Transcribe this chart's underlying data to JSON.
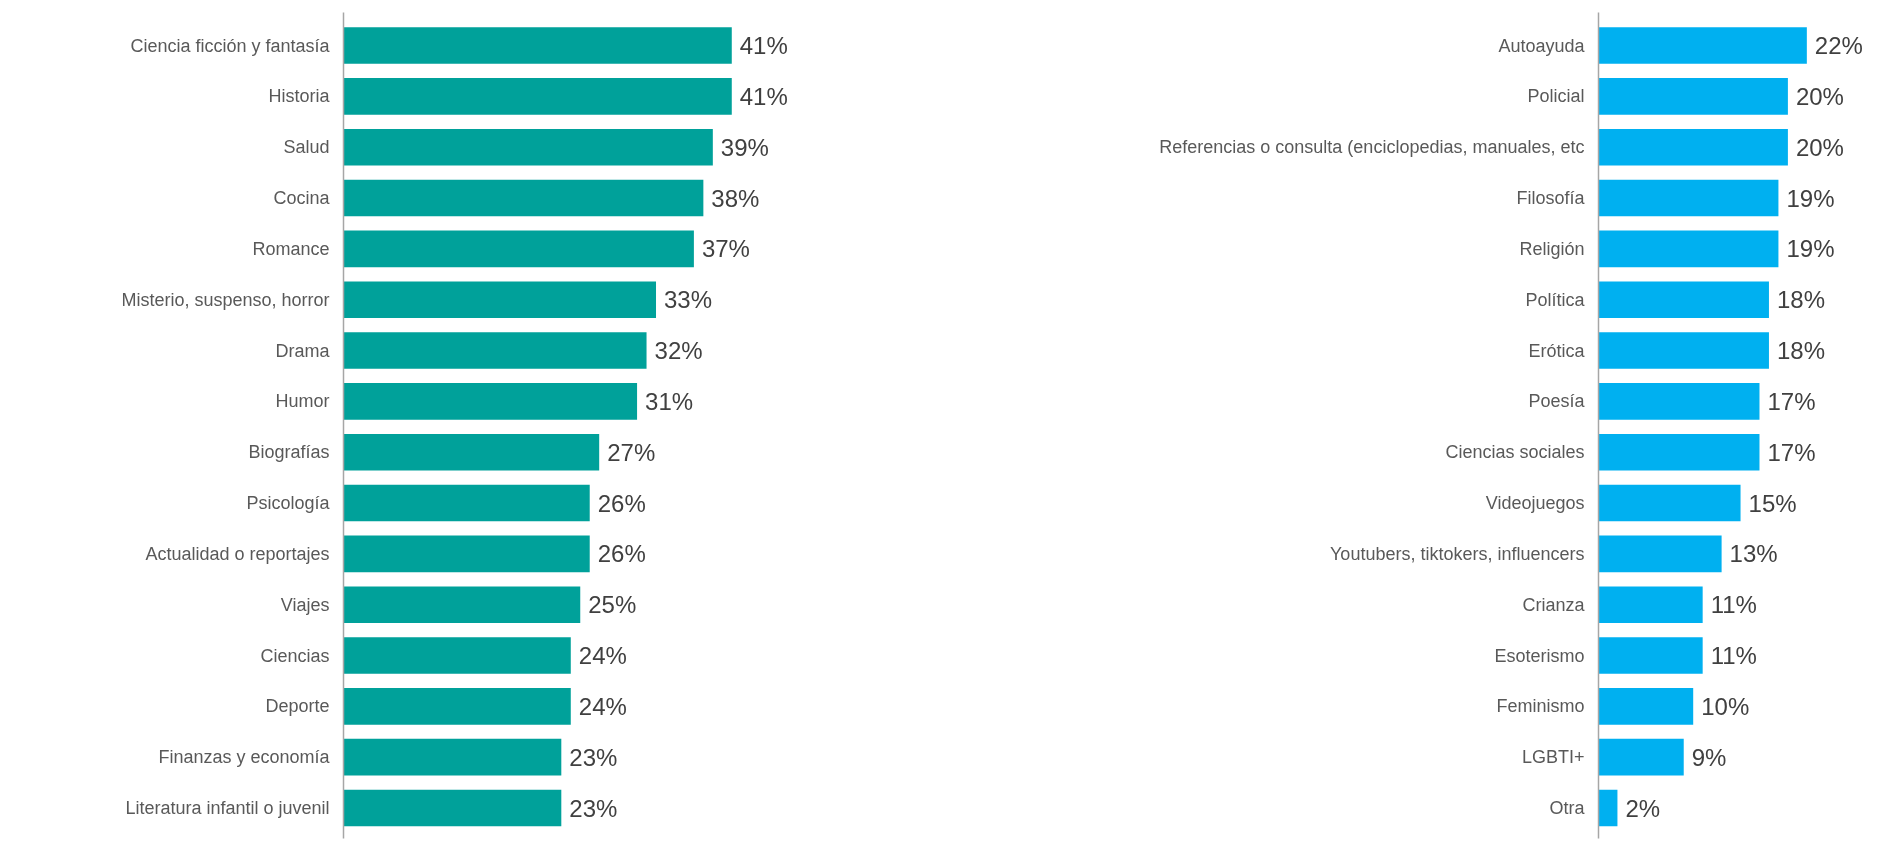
{
  "chart_data": [
    {
      "type": "bar",
      "orientation": "horizontal",
      "color": "#00a19a",
      "categories": [
        "Ciencia ficción y fantasía",
        "Historia",
        "Salud",
        "Cocina",
        "Romance",
        "Misterio, suspenso, horror",
        "Drama",
        "Humor",
        "Biografías",
        "Psicología",
        "Actualidad o reportajes",
        "Viajes",
        "Ciencias",
        "Deporte",
        "Finanzas y economía",
        "Literatura infantil o juvenil"
      ],
      "values": [
        41,
        41,
        39,
        38,
        37,
        33,
        32,
        31,
        27,
        26,
        26,
        25,
        24,
        24,
        23,
        23
      ],
      "value_labels": [
        "41%",
        "41%",
        "39%",
        "38%",
        "37%",
        "33%",
        "32%",
        "31%",
        "27%",
        "26%",
        "26%",
        "25%",
        "24%",
        "24%",
        "23%",
        "23%"
      ]
    },
    {
      "type": "bar",
      "orientation": "horizontal",
      "color": "#00b0f0",
      "categories": [
        "Autoayuda",
        "Policial",
        "Referencias o consulta (enciclopedias, manuales, etc",
        "Filosofía",
        "Religión",
        "Política",
        "Erótica",
        "Poesía",
        "Ciencias sociales",
        "Videojuegos",
        "Youtubers, tiktokers, influencers",
        "Crianza",
        "Esoterismo",
        "Feminismo",
        "LGBTI+",
        "Otra"
      ],
      "values": [
        22,
        20,
        20,
        19,
        19,
        18,
        18,
        17,
        17,
        15,
        13,
        11,
        11,
        10,
        9,
        2
      ],
      "value_labels": [
        "22%",
        "20%",
        "20%",
        "19%",
        "19%",
        "18%",
        "18%",
        "17%",
        "17%",
        "15%",
        "13%",
        "11%",
        "11%",
        "10%",
        "9%",
        "2%"
      ]
    }
  ]
}
